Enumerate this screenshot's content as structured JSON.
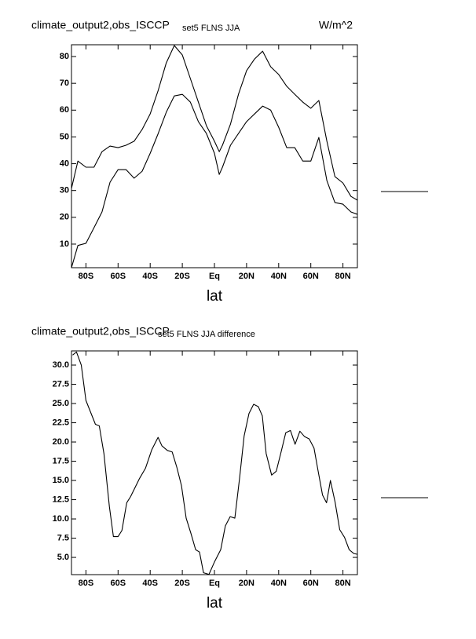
{
  "chart_data": [
    {
      "type": "line",
      "title": "climate_output2,obs_ISCCP",
      "subtitle": "set5 FLNS JJA",
      "units": "W/m^2",
      "xlabel": "lat",
      "x": [
        -89,
        -85,
        -80,
        -75,
        -70,
        -65,
        -60,
        -55,
        -50,
        -45,
        -40,
        -35,
        -30,
        -25,
        -20,
        -15,
        -10,
        -5,
        0,
        3,
        5,
        10,
        15,
        20,
        25,
        30,
        35,
        40,
        45,
        50,
        55,
        60,
        65,
        70,
        75,
        80,
        85,
        89
      ],
      "series": [
        {
          "color": "#000000",
          "values": [
            30.8,
            41,
            38.7,
            38.7,
            44.5,
            46.6,
            46,
            46.9,
            48.4,
            52.8,
            58.6,
            67.4,
            77.6,
            84.1,
            80.6,
            71.8,
            63,
            54.2,
            48.4,
            44.5,
            46.9,
            54.8,
            66,
            74.7,
            79.1,
            82,
            76.2,
            73.3,
            68.9,
            65.9,
            63,
            60.7,
            63.6,
            48.4,
            35.2,
            32.8,
            27.8,
            26.4
          ]
        },
        {
          "color": "#000000",
          "values": [
            1.2,
            9.5,
            10.3,
            16.1,
            22,
            33.1,
            37.8,
            37.8,
            34.6,
            37.2,
            43.9,
            51.3,
            59.2,
            65.3,
            65.9,
            63,
            55.7,
            51.3,
            43.9,
            36,
            38.7,
            46.9,
            51.3,
            55.7,
            58.6,
            61.5,
            60,
            53.6,
            46,
            46,
            41,
            41,
            49.8,
            33.7,
            25.5,
            24.9,
            22,
            21.1
          ]
        }
      ],
      "xlim": [
        -89,
        89
      ],
      "ylim": [
        1.2,
        84.4
      ],
      "xticks": [
        {
          "value": -80,
          "label": "80S"
        },
        {
          "value": -60,
          "label": "60S"
        },
        {
          "value": -40,
          "label": "40S"
        },
        {
          "value": -20,
          "label": "20S"
        },
        {
          "value": 0,
          "label": "Eq"
        },
        {
          "value": 20,
          "label": "20N"
        },
        {
          "value": 40,
          "label": "40N"
        },
        {
          "value": 60,
          "label": "60N"
        },
        {
          "value": 80,
          "label": "80N"
        }
      ],
      "yticks": [
        10,
        20,
        30,
        40,
        50,
        60,
        70,
        80
      ]
    },
    {
      "type": "line",
      "title": "climate_output2,obs_ISCCP",
      "subtitle": "set5 FLNS JJA difference",
      "xlabel": "lat",
      "x": [
        -88.3,
        -85.9,
        -82.9,
        -80,
        -74.1,
        -71.7,
        -68.8,
        -65.4,
        -62.9,
        -60,
        -57.6,
        -54.6,
        -52.2,
        -46.8,
        -42.9,
        -39,
        -35.1,
        -32.7,
        -29.3,
        -26.3,
        -23.4,
        -20.5,
        -17.6,
        -14.6,
        -11.7,
        -9.3,
        -6.8,
        -3.4,
        0,
        3.9,
        6.8,
        9.8,
        12.7,
        15.6,
        18.5,
        21.5,
        24.4,
        27.3,
        29.8,
        32.2,
        35.6,
        38.5,
        41.5,
        44.4,
        47.3,
        50.2,
        53.2,
        56.1,
        59,
        62,
        64.4,
        67.3,
        69.8,
        72.2,
        75.1,
        78,
        81,
        83.9,
        86.8,
        89
      ],
      "series": [
        {
          "color": "#000000",
          "values": [
            31.3,
            31.7,
            30,
            25.4,
            22.3,
            22.1,
            18.5,
            11.6,
            7.7,
            7.7,
            8.5,
            12.1,
            12.9,
            15.2,
            16.6,
            19,
            20.6,
            19.5,
            18.9,
            18.7,
            16.7,
            14.3,
            10.1,
            8.1,
            6,
            5.7,
            3,
            2.8,
            4.4,
            6,
            9.1,
            10.3,
            10.1,
            15.2,
            20.8,
            23.7,
            24.9,
            24.6,
            23.4,
            18.5,
            15.7,
            16.2,
            18.7,
            21.2,
            21.5,
            19.7,
            21.4,
            20.7,
            20.4,
            19.2,
            16.4,
            13.1,
            12.1,
            15,
            12.2,
            8.6,
            7.6,
            6,
            5.5,
            5.4
          ]
        }
      ],
      "xlim": [
        -89,
        89
      ],
      "ylim": [
        2.76,
        31.84
      ],
      "xticks": [
        {
          "value": -80,
          "label": "80S"
        },
        {
          "value": -60,
          "label": "60S"
        },
        {
          "value": -40,
          "label": "40S"
        },
        {
          "value": -20,
          "label": "20S"
        },
        {
          "value": 0,
          "label": "Eq"
        },
        {
          "value": 20,
          "label": "20N"
        },
        {
          "value": 40,
          "label": "40N"
        },
        {
          "value": 60,
          "label": "60N"
        },
        {
          "value": 80,
          "label": "80N"
        }
      ],
      "yticks": [
        {
          "value": 5,
          "label": "5.0"
        },
        {
          "value": 7.5,
          "label": "7.5"
        },
        {
          "value": 10,
          "label": "10.0"
        },
        {
          "value": 12.5,
          "label": "12.5"
        },
        {
          "value": 15,
          "label": "15.0"
        },
        {
          "value": 17.5,
          "label": "17.5"
        },
        {
          "value": 20,
          "label": "20.0"
        },
        {
          "value": 22.5,
          "label": "22.5"
        },
        {
          "value": 25,
          "label": "25.0"
        },
        {
          "value": 27.5,
          "label": "27.5"
        },
        {
          "value": 30,
          "label": "30.0"
        }
      ]
    }
  ]
}
